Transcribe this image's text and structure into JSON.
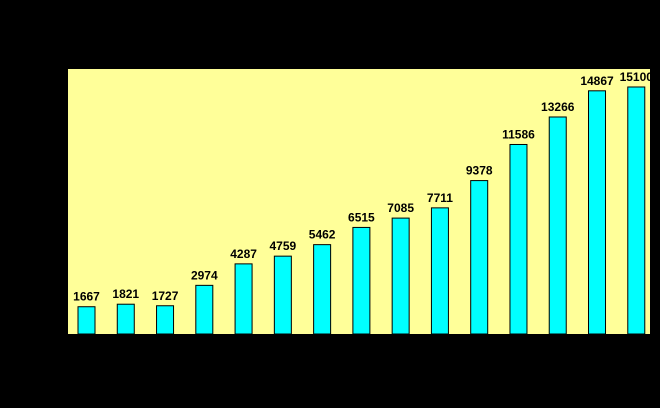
{
  "chart_data": {
    "type": "bar",
    "categories": [
      "",
      "",
      "",
      "",
      "",
      "",
      "",
      "",
      "",
      "",
      "",
      "",
      "",
      "",
      ""
    ],
    "values": [
      1667,
      1821,
      1727,
      2974,
      4287,
      4759,
      5462,
      6515,
      7085,
      7711,
      9378,
      11586,
      13266,
      14867,
      15100
    ],
    "data_labels": [
      "1667",
      "1821",
      "1727",
      "2974",
      "4287",
      "4759",
      "5462",
      "6515",
      "7085",
      "7711",
      "9378",
      "11586",
      "13266",
      "14867",
      "15100"
    ],
    "title": "",
    "xlabel": "",
    "ylabel": "",
    "ylim": [
      0,
      16200
    ],
    "grid": false,
    "legend": "none",
    "colors": {
      "background": "#000000",
      "plot_area": "#FFFF99",
      "bar_fill": "#00FFFF",
      "bar_stroke": "#000000",
      "label": "#000000"
    }
  }
}
